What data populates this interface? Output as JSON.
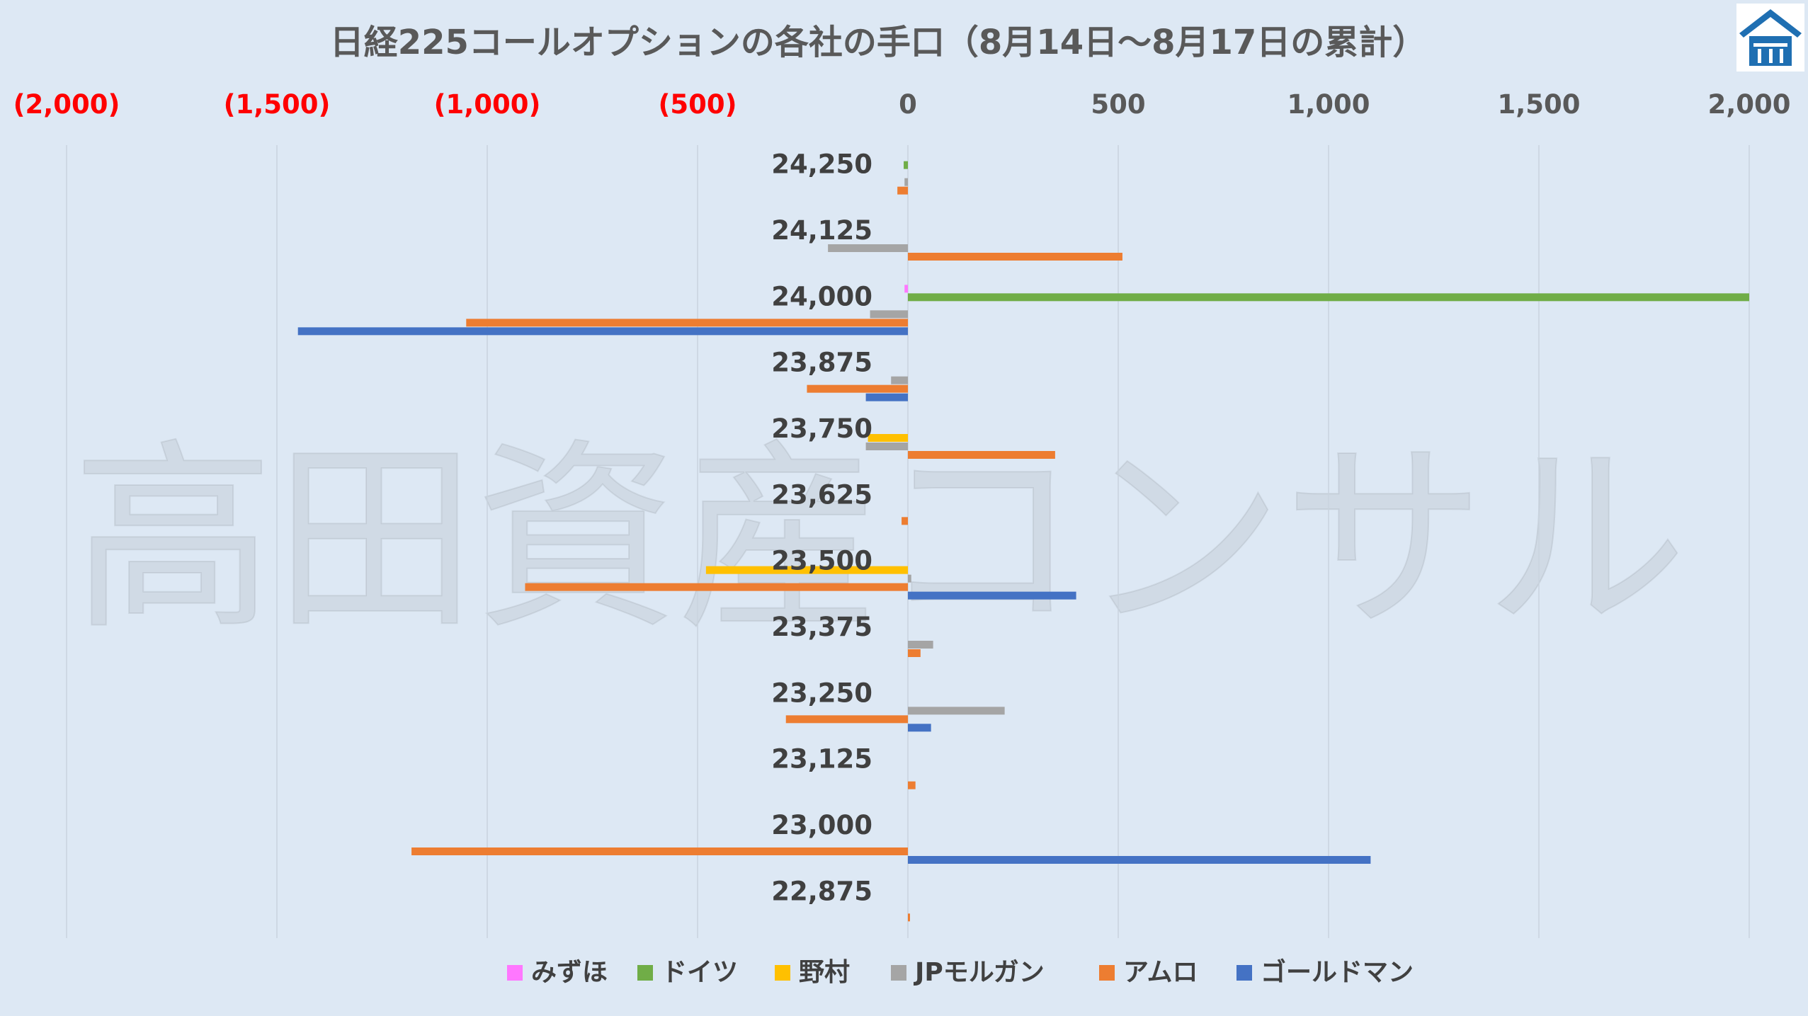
{
  "chart_data": {
    "type": "bar",
    "orientation": "horizontal",
    "title": "日経225コールオプションの各社の手口（8月14日～8月17日の累計）",
    "watermark": "高田資産コンサル",
    "xlim": [
      -2000,
      2000
    ],
    "x_ticks": [
      {
        "value": -2000,
        "label": "(2,000)"
      },
      {
        "value": -1500,
        "label": "(1,500)"
      },
      {
        "value": -1000,
        "label": "(1,000)"
      },
      {
        "value": -500,
        "label": "(500)"
      },
      {
        "value": 0,
        "label": "0"
      },
      {
        "value": 500,
        "label": "500"
      },
      {
        "value": 1000,
        "label": "1,000"
      },
      {
        "value": 1500,
        "label": "1,500"
      },
      {
        "value": 2000,
        "label": "2,000"
      }
    ],
    "negative_tick_color": "#ff0000",
    "grid": true,
    "legend_position": "bottom",
    "categories": [
      "24,250",
      "24,125",
      "24,000",
      "23,875",
      "23,750",
      "23,625",
      "23,500",
      "23,375",
      "23,250",
      "23,125",
      "23,000",
      "22,875"
    ],
    "series": [
      {
        "name": "みずほ",
        "color": "#ff77ff",
        "values": [
          0,
          0,
          -8,
          0,
          0,
          0,
          0,
          0,
          0,
          0,
          0,
          0
        ]
      },
      {
        "name": "ドイツ",
        "color": "#70ad47",
        "values": [
          -10,
          0,
          2000,
          0,
          0,
          0,
          0,
          0,
          0,
          0,
          0,
          0
        ]
      },
      {
        "name": "野村",
        "color": "#ffc000",
        "values": [
          0,
          0,
          0,
          0,
          -95,
          0,
          -480,
          0,
          0,
          0,
          0,
          0
        ]
      },
      {
        "name": "JPモルガン",
        "color": "#a5a5a5",
        "values": [
          -8,
          -190,
          -90,
          -40,
          -100,
          0,
          8,
          60,
          230,
          0,
          0,
          0
        ]
      },
      {
        "name": "アムロ",
        "color": "#ed7d31",
        "values": [
          -25,
          510,
          -1050,
          -240,
          350,
          -15,
          -910,
          30,
          -290,
          18,
          -1180,
          5
        ]
      },
      {
        "name": "ゴールドマン",
        "color": "#4472c4",
        "values": [
          0,
          0,
          -1450,
          -100,
          0,
          0,
          400,
          0,
          55,
          0,
          1100,
          0
        ]
      }
    ]
  },
  "logo": {
    "name": "company-logo",
    "color": "#1f6fb2"
  }
}
